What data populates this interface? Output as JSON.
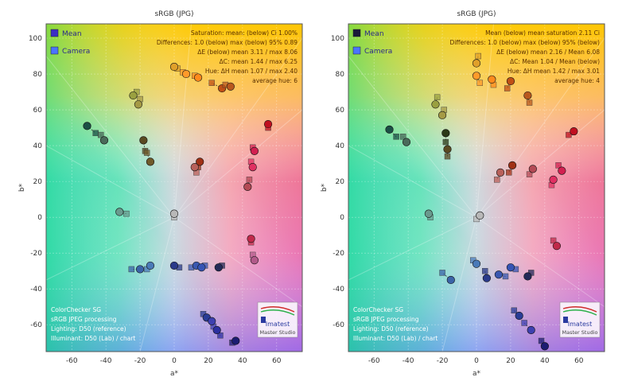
{
  "chart_data": [
    {
      "type": "scatter",
      "title": "sRGB (JPG)",
      "xlabel": "a*",
      "ylabel": "b*",
      "xlim": [
        -75,
        75
      ],
      "ylim": [
        -75,
        108
      ],
      "x_ticks": [
        -60,
        -40,
        -20,
        0,
        20,
        40,
        60
      ],
      "y_ticks": [
        -60,
        -40,
        -20,
        0,
        20,
        40,
        60,
        80,
        100
      ],
      "x_tick_labels": [
        "-60",
        "-40",
        "-20",
        "0",
        "20",
        "40",
        "60"
      ],
      "y_tick_labels": [
        "-60",
        "-40",
        "-20",
        "0",
        "20",
        "40",
        "60",
        "80",
        "100"
      ],
      "grid": true,
      "legend_position": "top-left",
      "legend": [
        {
          "name": "Mean",
          "marker": "square",
          "color": "#3b2fc4"
        },
        {
          "name": "Camera",
          "marker": "square",
          "color": "#4a74ff"
        }
      ],
      "stats_text": [
        "Saturation: mean: (below) Ci 1.00%",
        "Differences: 1.0 (below) max (below) 95% 0.89",
        "ΔE (below) mean 3.11 / max 8.06",
        "ΔC: mean 1.44 / max 6.25",
        "Hue: ΔH mean 1.07 / max 2.40",
        "average hue: 6"
      ],
      "info_text": [
        "ColorChecker SG",
        "sRGB JPEG processing",
        "Lighting: D50 (reference)",
        "Illuminant: D50 (Lab) / chart"
      ],
      "brand_text": "Imatest",
      "brand_caption": "Master Studio",
      "points": [
        {
          "x": -51,
          "y": 51,
          "c": "#1b4f45",
          "ref": [
            -46,
            47
          ]
        },
        {
          "x": -41,
          "y": 43,
          "c": "#4a6a5a",
          "ref": [
            -43,
            46
          ]
        },
        {
          "x": -18,
          "y": 43,
          "c": "#5a4a22",
          "ref": [
            -17,
            37
          ]
        },
        {
          "x": -14,
          "y": 31,
          "c": "#6f5a2a",
          "ref": [
            -16,
            36
          ]
        },
        {
          "x": -24,
          "y": 68,
          "c": "#9aa040",
          "ref": [
            -22,
            70
          ]
        },
        {
          "x": -21,
          "y": 63,
          "c": "#a59a45",
          "ref": [
            -20,
            66
          ]
        },
        {
          "x": 0,
          "y": 84,
          "c": "#e0a02a",
          "ref": [
            2,
            83
          ]
        },
        {
          "x": 7,
          "y": 80,
          "c": "#ff9a2a",
          "ref": [
            5,
            81
          ]
        },
        {
          "x": 14,
          "y": 78,
          "c": "#ff8a1c",
          "ref": [
            12,
            79
          ]
        },
        {
          "x": 28,
          "y": 72,
          "c": "#c05015",
          "ref": [
            22,
            75
          ]
        },
        {
          "x": 33,
          "y": 73,
          "c": "#b8581e",
          "ref": [
            30,
            74
          ]
        },
        {
          "x": 55,
          "y": 52,
          "c": "#c01020",
          "ref": [
            55,
            50
          ]
        },
        {
          "x": 47,
          "y": 37,
          "c": "#d22050",
          "ref": [
            46,
            39
          ]
        },
        {
          "x": 46,
          "y": 28,
          "c": "#e03062",
          "ref": [
            45,
            31
          ]
        },
        {
          "x": 15,
          "y": 31,
          "c": "#a03015",
          "ref": [
            14,
            28
          ]
        },
        {
          "x": 12,
          "y": 28,
          "c": "#b8605a",
          "ref": [
            13,
            25
          ]
        },
        {
          "x": 43,
          "y": 17,
          "c": "#b44a55",
          "ref": [
            44,
            21
          ]
        },
        {
          "x": 45,
          "y": -12,
          "c": "#c02a4a",
          "ref": [
            45,
            -14
          ]
        },
        {
          "x": 47,
          "y": -24,
          "c": "#b25a8a",
          "ref": [
            46,
            -21
          ]
        },
        {
          "x": -32,
          "y": 3,
          "c": "#6a9a8e",
          "ref": [
            -28,
            2
          ]
        },
        {
          "x": 0,
          "y": 2,
          "c": "#b8b8b8",
          "ref": [
            0,
            0
          ]
        },
        {
          "x": -20,
          "y": -29,
          "c": "#3b64a8",
          "ref": [
            -25,
            -29
          ]
        },
        {
          "x": -14,
          "y": -27,
          "c": "#4a7ab8",
          "ref": [
            -16,
            -29
          ]
        },
        {
          "x": 0,
          "y": -27,
          "c": "#2a3a8a",
          "ref": [
            3,
            -28
          ]
        },
        {
          "x": 13,
          "y": -27,
          "c": "#3a58b0",
          "ref": [
            10,
            -28
          ]
        },
        {
          "x": 16,
          "y": -28,
          "c": "#3554b4",
          "ref": [
            18,
            -27
          ]
        },
        {
          "x": 26,
          "y": -28,
          "c": "#232a58",
          "ref": [
            28,
            -27
          ]
        },
        {
          "x": 19,
          "y": -56,
          "c": "#2a3c96",
          "ref": [
            17,
            -54
          ]
        },
        {
          "x": 22,
          "y": -58,
          "c": "#3d40b0",
          "ref": [
            23,
            -61
          ]
        },
        {
          "x": 25,
          "y": -63,
          "c": "#2c2fa0",
          "ref": [
            27,
            -66
          ]
        },
        {
          "x": 36,
          "y": -69,
          "c": "#1c1c72",
          "ref": [
            34,
            -70
          ]
        }
      ]
    },
    {
      "type": "scatter",
      "title": "sRGB (JPG)",
      "xlabel": "a*",
      "ylabel": "b*",
      "xlim": [
        -75,
        75
      ],
      "ylim": [
        -75,
        108
      ],
      "x_ticks": [
        -60,
        -40,
        -20,
        0,
        20,
        40,
        60
      ],
      "y_ticks": [
        -60,
        -40,
        -20,
        0,
        20,
        40,
        60,
        80,
        100
      ],
      "x_tick_labels": [
        "-60",
        "-40",
        "-20",
        "0",
        "20",
        "40",
        "60"
      ],
      "y_tick_labels": [
        "-60",
        "-40",
        "-20",
        "0",
        "20",
        "40",
        "60",
        "80",
        "100"
      ],
      "grid": true,
      "legend_position": "top-left",
      "legend": [
        {
          "name": "Mean",
          "marker": "square",
          "color": "#1a1a3a"
        },
        {
          "name": "Camera",
          "marker": "square",
          "color": "#4a74ff"
        }
      ],
      "stats_text": [
        "Mean (below) mean saturation 2.11 Ci",
        "Differences: 1.0 (below) max (below) 95% (below)",
        "ΔE (below) mean 2.16 / Mean 6.08",
        "ΔC: Mean 1.04 / Mean (below)",
        "Hue: ΔH mean 1.42 / max 3.01",
        "average hue: 4"
      ],
      "info_text": [
        "ColorChecker SG",
        "sRGB JPEG processing",
        "Lighting: D50 (reference)",
        "Illuminant: D50 (Lab) / chart"
      ],
      "brand_text": "Imatest",
      "brand_caption": "Master Studio",
      "points": [
        {
          "x": -51,
          "y": 49,
          "c": "#1b4f45",
          "ref": [
            -47,
            45
          ]
        },
        {
          "x": -41,
          "y": 42,
          "c": "#4a6a5a",
          "ref": [
            -43,
            45
          ]
        },
        {
          "x": -18,
          "y": 47,
          "c": "#2c3a18",
          "ref": [
            -18,
            42
          ]
        },
        {
          "x": -17,
          "y": 38,
          "c": "#5a4a22",
          "ref": [
            -17,
            34
          ]
        },
        {
          "x": -24,
          "y": 63,
          "c": "#9aa040",
          "ref": [
            -23,
            67
          ]
        },
        {
          "x": -20,
          "y": 57,
          "c": "#a59a45",
          "ref": [
            -19,
            60
          ]
        },
        {
          "x": 0,
          "y": 86,
          "c": "#e0a02a",
          "ref": [
            1,
            90
          ]
        },
        {
          "x": 0,
          "y": 79,
          "c": "#ff9a2a",
          "ref": [
            2,
            75
          ]
        },
        {
          "x": 9,
          "y": 77,
          "c": "#ff8a1c",
          "ref": [
            10,
            74
          ]
        },
        {
          "x": 20,
          "y": 76,
          "c": "#c05015",
          "ref": [
            18,
            72
          ]
        },
        {
          "x": 30,
          "y": 68,
          "c": "#b8581e",
          "ref": [
            31,
            64
          ]
        },
        {
          "x": 57,
          "y": 48,
          "c": "#c01020",
          "ref": [
            54,
            46
          ]
        },
        {
          "x": 50,
          "y": 26,
          "c": "#d22050",
          "ref": [
            48,
            29
          ]
        },
        {
          "x": 45,
          "y": 21,
          "c": "#e03062",
          "ref": [
            44,
            18
          ]
        },
        {
          "x": 21,
          "y": 29,
          "c": "#a03015",
          "ref": [
            19,
            25
          ]
        },
        {
          "x": 14,
          "y": 25,
          "c": "#b8605a",
          "ref": [
            12,
            21
          ]
        },
        {
          "x": 33,
          "y": 27,
          "c": "#b44a55",
          "ref": [
            31,
            24
          ]
        },
        {
          "x": 47,
          "y": -16,
          "c": "#c02a4a",
          "ref": [
            45,
            -13
          ]
        },
        {
          "x": -28,
          "y": 2,
          "c": "#6a9a8e",
          "ref": [
            -27,
            0
          ]
        },
        {
          "x": 2,
          "y": 1,
          "c": "#b8b8b8",
          "ref": [
            0,
            -1
          ]
        },
        {
          "x": -15,
          "y": -35,
          "c": "#3b64a8",
          "ref": [
            -20,
            -31
          ]
        },
        {
          "x": 0,
          "y": -26,
          "c": "#4a7ab8",
          "ref": [
            -2,
            -24
          ]
        },
        {
          "x": 6,
          "y": -34,
          "c": "#2a3a8a",
          "ref": [
            5,
            -30
          ]
        },
        {
          "x": 13,
          "y": -32,
          "c": "#3a58b0",
          "ref": [
            17,
            -33
          ]
        },
        {
          "x": 20,
          "y": -28,
          "c": "#3554b4",
          "ref": [
            23,
            -29
          ]
        },
        {
          "x": 30,
          "y": -33,
          "c": "#232a58",
          "ref": [
            32,
            -31
          ]
        },
        {
          "x": 25,
          "y": -55,
          "c": "#2a3c96",
          "ref": [
            22,
            -52
          ]
        },
        {
          "x": 32,
          "y": -63,
          "c": "#3d40b0",
          "ref": [
            28,
            -59
          ]
        },
        {
          "x": 40,
          "y": -72,
          "c": "#1c1c72",
          "ref": [
            38,
            -69
          ]
        }
      ]
    }
  ]
}
